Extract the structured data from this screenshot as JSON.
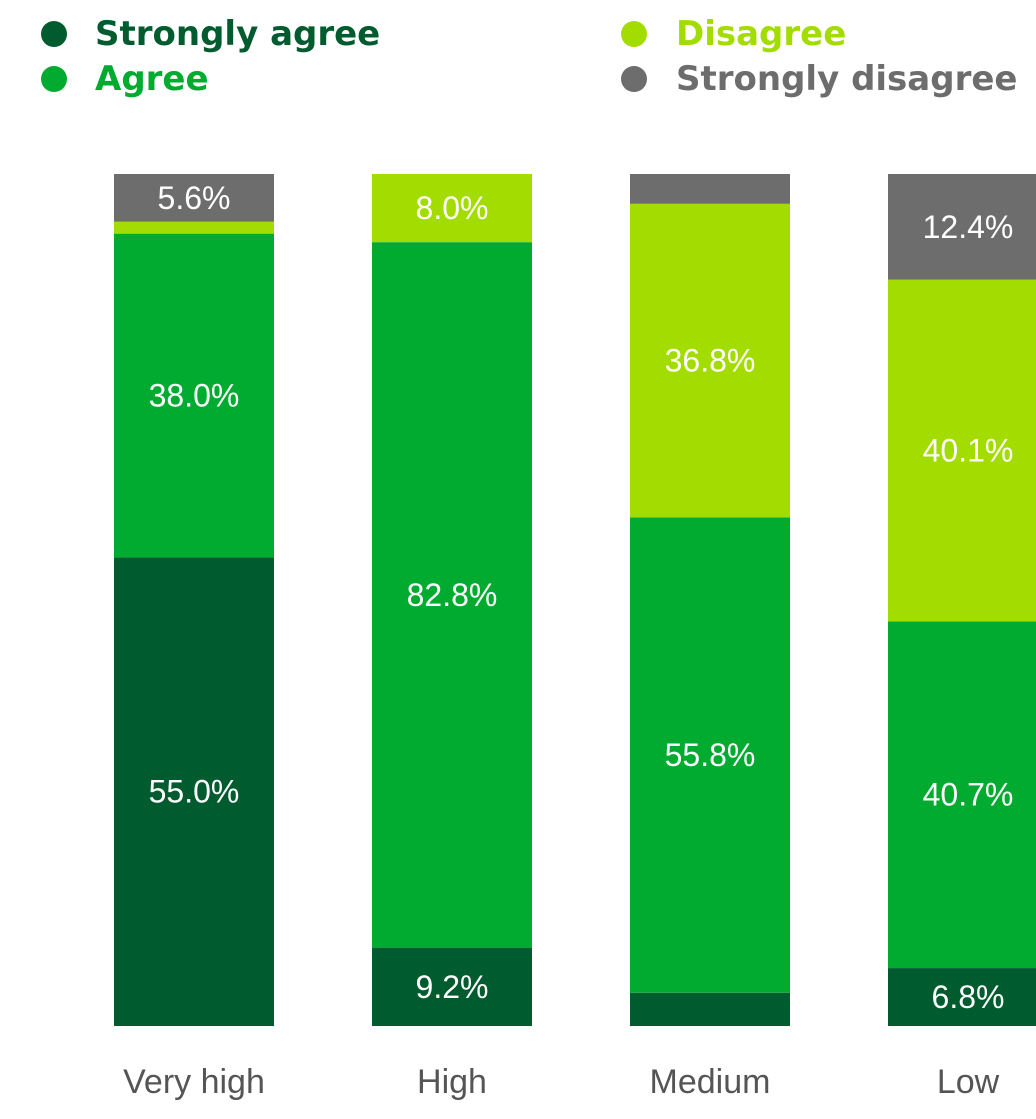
{
  "chart_data": {
    "type": "bar",
    "stacked": true,
    "orientation": "vertical",
    "normalized_to": 100,
    "categories": [
      "Very high",
      "High",
      "Medium",
      "Low"
    ],
    "series": [
      {
        "name": "Strongly agree",
        "color": "#005c2e",
        "values": [
          55.0,
          9.2,
          3.9,
          6.8
        ],
        "labels": [
          "55.0%",
          "9.2%",
          "",
          "6.8%"
        ]
      },
      {
        "name": "Agree",
        "color": "#00ab2f",
        "values": [
          38.0,
          82.8,
          55.8,
          40.7
        ],
        "labels": [
          "38.0%",
          "82.8%",
          "55.8%",
          "40.7%"
        ]
      },
      {
        "name": "Disagree",
        "color": "#a3dc00",
        "values": [
          1.4,
          8.0,
          36.8,
          40.1
        ],
        "labels": [
          "",
          "8.0%",
          "36.8%",
          "40.1%"
        ]
      },
      {
        "name": "Strongly disagree",
        "color": "#6d6d6d",
        "values": [
          5.6,
          0.0,
          3.5,
          12.4
        ],
        "labels": [
          "5.6%",
          "",
          "",
          "12.4%"
        ]
      }
    ],
    "legend_position": "top",
    "legend_text_colors": [
      "#005c2e",
      "#00ab2f",
      "#a3dc00",
      "#6d6d6d"
    ],
    "grid": false
  }
}
